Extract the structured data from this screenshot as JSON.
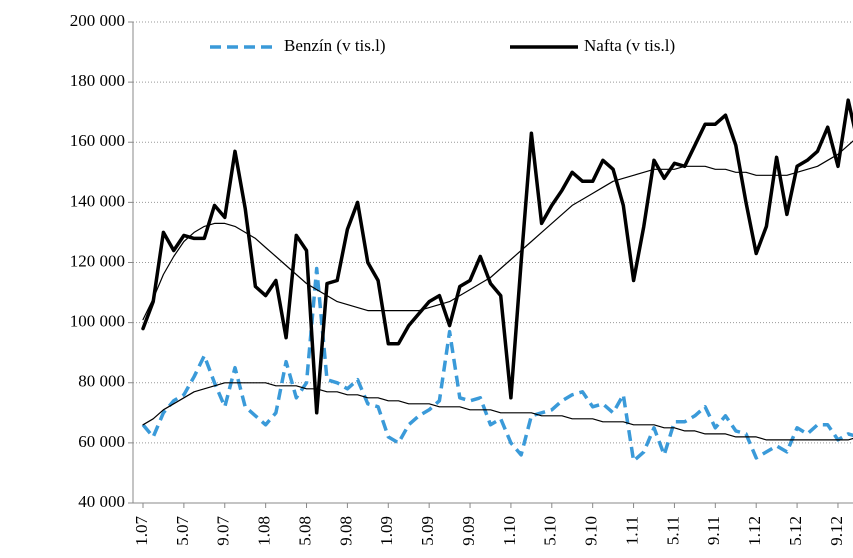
{
  "chart_data": {
    "type": "line",
    "categories": [
      "1.07",
      null,
      null,
      null,
      "5.07",
      null,
      null,
      null,
      "9.07",
      null,
      null,
      null,
      "1.08",
      null,
      null,
      null,
      "5.08",
      null,
      null,
      null,
      "9.08",
      null,
      null,
      null,
      "1.09",
      null,
      null,
      null,
      "5.09",
      null,
      null,
      null,
      "9.09",
      null,
      null,
      null,
      "1.10",
      null,
      null,
      null,
      "5.10",
      null,
      null,
      null,
      "9.10",
      null,
      null,
      null,
      "1.11",
      null,
      null,
      null,
      "5.11",
      null,
      null,
      null,
      "9.11",
      null,
      null,
      null,
      "1.12",
      null,
      null,
      null,
      "5.12",
      null,
      null,
      null,
      "9.12",
      null,
      null
    ],
    "series": [
      {
        "name": "Benzín (v tis.l)",
        "color": "#3a9ad9",
        "line_style": "dashed",
        "line_width": 3.5,
        "values": [
          66000,
          62000,
          70000,
          74000,
          76000,
          82000,
          89000,
          80000,
          72000,
          85000,
          72000,
          69000,
          66000,
          70000,
          87000,
          75000,
          80000,
          118000,
          81000,
          80000,
          78000,
          81000,
          73000,
          72000,
          62000,
          60000,
          66000,
          69000,
          71000,
          74000,
          97000,
          75000,
          74000,
          75000,
          66000,
          68000,
          60000,
          56000,
          69000,
          70000,
          71000,
          74000,
          76000,
          77000,
          72000,
          73000,
          70000,
          76000,
          54000,
          57000,
          65000,
          56000,
          67000,
          67000,
          69000,
          72000,
          65000,
          69000,
          64000,
          63000,
          55000,
          57000,
          59000,
          57000,
          65000,
          63000,
          66000,
          66000,
          61000,
          63000,
          62000
        ]
      },
      {
        "name": "Nafta (v tis.l)",
        "color": "#000000",
        "line_style": "solid",
        "line_width": 3.5,
        "values": [
          98000,
          107000,
          130000,
          124000,
          129000,
          128000,
          128000,
          139000,
          135000,
          157000,
          138000,
          112000,
          109000,
          114000,
          95000,
          129000,
          124000,
          70000,
          113000,
          114000,
          131000,
          140000,
          120000,
          114000,
          93000,
          93000,
          99000,
          103000,
          107000,
          109000,
          99000,
          112000,
          114000,
          122000,
          113000,
          109000,
          75000,
          120000,
          163000,
          133000,
          139000,
          144000,
          150000,
          147000,
          147000,
          154000,
          151000,
          139000,
          114000,
          132000,
          154000,
          148000,
          153000,
          152000,
          159000,
          166000,
          166000,
          169000,
          159000,
          140000,
          123000,
          132000,
          155000,
          136000,
          152000,
          154000,
          157000,
          165000,
          152000,
          174000,
          159000
        ]
      },
      {
        "color": "#000000",
        "line_style": "solid",
        "line_width": 1.2,
        "values": [
          66000,
          68000,
          71000,
          73000,
          75000,
          77000,
          78000,
          79000,
          80000,
          80000,
          80000,
          80000,
          80000,
          79000,
          79000,
          79000,
          78000,
          78000,
          77000,
          77000,
          76000,
          76000,
          75000,
          75000,
          74000,
          74000,
          73000,
          73000,
          73000,
          72000,
          72000,
          72000,
          71000,
          71000,
          71000,
          70000,
          70000,
          70000,
          70000,
          69000,
          69000,
          69000,
          68000,
          68000,
          68000,
          67000,
          67000,
          67000,
          66000,
          66000,
          66000,
          65000,
          65000,
          64000,
          64000,
          63000,
          63000,
          63000,
          62000,
          62000,
          62000,
          61000,
          61000,
          61000,
          61000,
          61000,
          61000,
          61000,
          61000,
          61000,
          62000
        ]
      },
      {
        "color": "#000000",
        "line_style": "solid",
        "line_width": 1.2,
        "values": [
          101000,
          108000,
          116000,
          122000,
          127000,
          130000,
          132000,
          133000,
          133000,
          132000,
          130000,
          128000,
          125000,
          122000,
          119000,
          116000,
          113000,
          111000,
          109000,
          107000,
          106000,
          105000,
          104000,
          104000,
          104000,
          104000,
          104000,
          104000,
          105000,
          106000,
          107000,
          109000,
          111000,
          113000,
          115000,
          118000,
          121000,
          124000,
          127000,
          130000,
          133000,
          136000,
          139000,
          141000,
          143000,
          145000,
          147000,
          148000,
          149000,
          150000,
          151000,
          151000,
          151000,
          152000,
          152000,
          152000,
          151000,
          151000,
          150000,
          150000,
          149000,
          149000,
          149000,
          149000,
          150000,
          151000,
          152000,
          154000,
          156000,
          159000,
          162000
        ]
      }
    ],
    "ylim": [
      40000,
      200000
    ],
    "yticks": [
      {
        "value": 40000,
        "label": "40 000"
      },
      {
        "value": 60000,
        "label": "60 000"
      },
      {
        "value": 80000,
        "label": "80 000"
      },
      {
        "value": 100000,
        "label": "100 000"
      },
      {
        "value": 120000,
        "label": "120 000"
      },
      {
        "value": 140000,
        "label": "140 000"
      },
      {
        "value": 160000,
        "label": "160 000"
      },
      {
        "value": 180000,
        "label": "180 000"
      },
      {
        "value": 200000,
        "label": "200 000"
      }
    ],
    "grid": true,
    "legend": "top"
  }
}
